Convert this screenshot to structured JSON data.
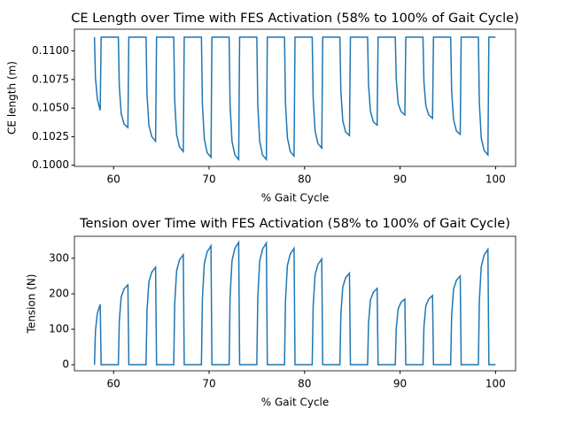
{
  "chart_data": [
    {
      "type": "line",
      "title": "CE Length over Time with FES Activation (58% to 100% of Gait Cycle)",
      "xlabel": "% Gait Cycle",
      "ylabel": "CE length (m)",
      "x": [
        58,
        58.1,
        58.3,
        58.5,
        58.6,
        58.7,
        60.5,
        60.6,
        60.8,
        61.1,
        61.5,
        61.6,
        63.4,
        63.5,
        63.7,
        64,
        64.4,
        64.5,
        66.3,
        66.4,
        66.6,
        66.9,
        67.3,
        67.4,
        69.2,
        69.3,
        69.5,
        69.8,
        70.2,
        70.3,
        72.1,
        72.2,
        72.4,
        72.7,
        73.1,
        73.2,
        75,
        75.1,
        75.3,
        75.6,
        76,
        76.1,
        77.9,
        78,
        78.2,
        78.5,
        78.9,
        79,
        80.8,
        80.9,
        81.1,
        81.4,
        81.8,
        81.9,
        83.7,
        83.8,
        84,
        84.3,
        84.7,
        84.8,
        86.6,
        86.7,
        86.9,
        87.2,
        87.6,
        87.7,
        89.5,
        89.6,
        89.8,
        90.1,
        90.5,
        90.6,
        92.4,
        92.5,
        92.7,
        93,
        93.4,
        93.5,
        95.3,
        95.4,
        95.6,
        95.9,
        96.3,
        96.4,
        98.2,
        98.3,
        98.5,
        98.8,
        99.2,
        99.3,
        100
      ],
      "series": [
        {
          "color": "#1f77b4",
          "values": [
            0.1112,
            0.1077,
            0.1058,
            0.1051,
            0.1048,
            0.1112,
            0.1112,
            0.1069,
            0.1045,
            0.1036,
            0.1033,
            0.1112,
            0.1112,
            0.1062,
            0.1035,
            0.1025,
            0.1021,
            0.1112,
            0.1112,
            0.1057,
            0.1027,
            0.1016,
            0.1012,
            0.1112,
            0.1112,
            0.1054,
            0.1023,
            0.1011,
            0.1007,
            0.1112,
            0.1112,
            0.1053,
            0.1021,
            0.1009,
            0.1005,
            0.1112,
            0.1112,
            0.1053,
            0.1021,
            0.1009,
            0.1005,
            0.1112,
            0.1112,
            0.1055,
            0.1024,
            0.1012,
            0.1008,
            0.1112,
            0.1112,
            0.1059,
            0.103,
            0.1019,
            0.1015,
            0.1112,
            0.1112,
            0.1065,
            0.1039,
            0.1029,
            0.1026,
            0.1112,
            0.1112,
            0.107,
            0.1047,
            0.1038,
            0.1035,
            0.1112,
            0.1112,
            0.1075,
            0.1054,
            0.1047,
            0.1044,
            0.1112,
            0.1112,
            0.1073,
            0.1052,
            0.1044,
            0.1041,
            0.1112,
            0.1112,
            0.1065,
            0.104,
            0.103,
            0.1027,
            0.1112,
            0.1112,
            0.1055,
            0.1024,
            0.1013,
            0.1009,
            0.1112,
            0.1112
          ]
        }
      ],
      "xlim": [
        55.9,
        102.1
      ],
      "xticks": [
        60,
        70,
        80,
        90,
        100
      ],
      "ylim": [
        0.0999,
        0.1119
      ],
      "yticks": [
        {
          "value": 0.1,
          "label": "0.1000"
        },
        {
          "value": 0.1025,
          "label": "0.1025"
        },
        {
          "value": 0.105,
          "label": "0.1050"
        },
        {
          "value": 0.1075,
          "label": "0.1075"
        },
        {
          "value": 0.11,
          "label": "0.1100"
        }
      ]
    },
    {
      "type": "line",
      "title": "Tension over Time with FES Activation (58% to 100% of Gait Cycle)",
      "xlabel": "% Gait Cycle",
      "ylabel": "Tension (N)",
      "x": [
        58,
        58.1,
        58.3,
        58.5,
        58.6,
        58.7,
        60.5,
        60.6,
        60.8,
        61.1,
        61.5,
        61.6,
        63.4,
        63.5,
        63.7,
        64,
        64.4,
        64.5,
        66.3,
        66.4,
        66.6,
        66.9,
        67.3,
        67.4,
        69.2,
        69.3,
        69.5,
        69.8,
        70.2,
        70.3,
        72.1,
        72.2,
        72.4,
        72.7,
        73.1,
        73.2,
        75,
        75.1,
        75.3,
        75.6,
        76,
        76.1,
        77.9,
        78,
        78.2,
        78.5,
        78.9,
        79,
        80.8,
        80.9,
        81.1,
        81.4,
        81.8,
        81.9,
        83.7,
        83.8,
        84,
        84.3,
        84.7,
        84.8,
        86.6,
        86.7,
        86.9,
        87.2,
        87.6,
        87.7,
        89.5,
        89.6,
        89.8,
        90.1,
        90.5,
        90.6,
        92.4,
        92.5,
        92.7,
        93,
        93.4,
        93.5,
        95.3,
        95.4,
        95.6,
        95.9,
        96.3,
        96.4,
        98.2,
        98.3,
        98.5,
        98.8,
        99.2,
        99.3,
        100
      ],
      "series": [
        {
          "color": "#1f77b4",
          "values": [
            0,
            94,
            145,
            162,
            170,
            0,
            0,
            124,
            191,
            214,
            225,
            0,
            0,
            151,
            234,
            261,
            275,
            0,
            0,
            171,
            264,
            295,
            310,
            0,
            0,
            184,
            285,
            318,
            335,
            0,
            0,
            190,
            293,
            328,
            345,
            0,
            0,
            189,
            292,
            326,
            343,
            0,
            0,
            180,
            279,
            312,
            328,
            0,
            0,
            164,
            253,
            283,
            298,
            0,
            0,
            142,
            219,
            245,
            258,
            0,
            0,
            118,
            183,
            204,
            215,
            0,
            0,
            102,
            157,
            176,
            185,
            0,
            0,
            107,
            166,
            185,
            195,
            0,
            0,
            138,
            213,
            238,
            250,
            0,
            0,
            179,
            276,
            309,
            325,
            0,
            0
          ]
        }
      ],
      "xlim": [
        55.9,
        102.1
      ],
      "xticks": [
        60,
        70,
        80,
        90,
        100
      ],
      "ylim": [
        -17,
        362
      ],
      "yticks": [
        0,
        100,
        200,
        300
      ]
    }
  ]
}
